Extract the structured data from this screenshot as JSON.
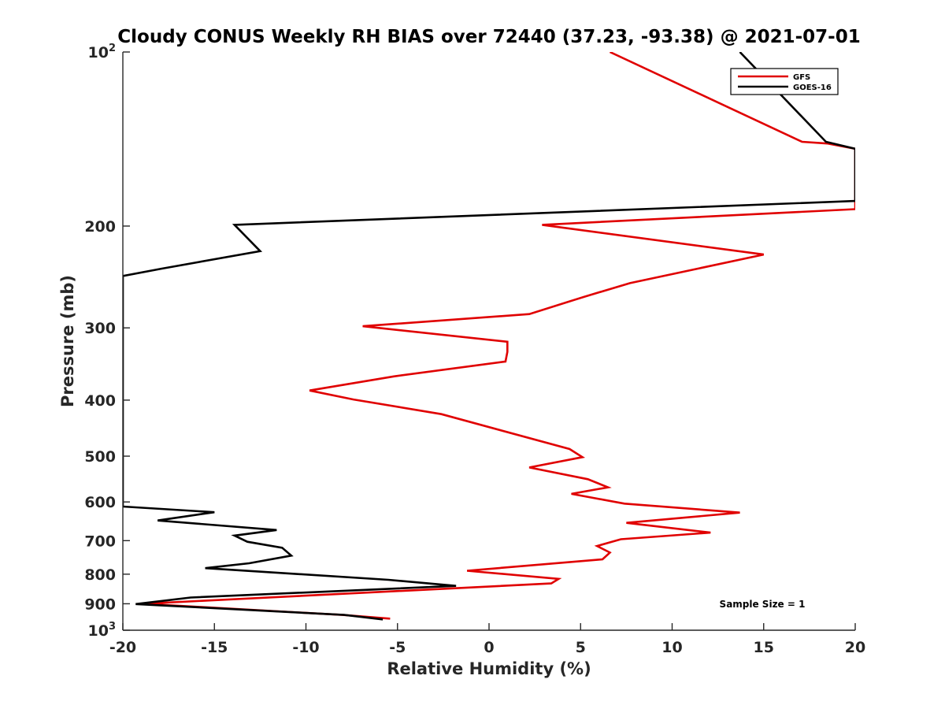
{
  "chart_data": {
    "type": "line",
    "title": "Cloudy CONUS Weekly RH BIAS over 72440 (37.23, -93.38) @ 2021-07-01",
    "xlabel": "Relative Humidity (%)",
    "ylabel": "Pressure (mb)",
    "xlim": [
      -20,
      20
    ],
    "ylim": [
      100,
      1000
    ],
    "yscale": "log",
    "y_reversed": true,
    "grid": false,
    "legend_position": "top-right",
    "x_ticks": [
      "-20",
      "-15",
      "-10",
      "-5",
      "0",
      "5",
      "10",
      "15",
      "20"
    ],
    "x_tick_values": [
      -20,
      -15,
      -10,
      -5,
      0,
      5,
      10,
      15,
      20
    ],
    "y_ticks": [
      {
        "value": 100,
        "base": "10",
        "exp": "2"
      },
      {
        "value": 200,
        "label": "200"
      },
      {
        "value": 300,
        "label": "300"
      },
      {
        "value": 400,
        "label": "400"
      },
      {
        "value": 500,
        "label": "500"
      },
      {
        "value": 600,
        "label": "600"
      },
      {
        "value": 700,
        "label": "700"
      },
      {
        "value": 800,
        "label": "800"
      },
      {
        "value": 900,
        "label": "900"
      },
      {
        "value": 1000,
        "base": "10",
        "exp": "3"
      }
    ],
    "annotation": "Sample Size = 1",
    "series": [
      {
        "name": "GFS",
        "color": "#e00000",
        "points": [
          [
            6.6,
            100
          ],
          [
            17.1,
            143
          ],
          [
            18.5,
            144
          ],
          [
            20,
            147
          ],
          [
            20,
            187
          ],
          [
            2.9,
            199
          ],
          [
            15.0,
            224
          ],
          [
            7.7,
            251
          ],
          [
            5.2,
            265
          ],
          [
            2.2,
            284
          ],
          [
            -6.9,
            298
          ],
          [
            1.0,
            317
          ],
          [
            1.0,
            330
          ],
          [
            0.9,
            343
          ],
          [
            -5.2,
            364
          ],
          [
            -9.8,
            385
          ],
          [
            -7.4,
            399
          ],
          [
            -2.6,
            423
          ],
          [
            4.4,
            486
          ],
          [
            5.1,
            502
          ],
          [
            2.2,
            523
          ],
          [
            5.4,
            548
          ],
          [
            6.5,
            566
          ],
          [
            4.5,
            581
          ],
          [
            7.4,
            604
          ],
          [
            13.7,
            626
          ],
          [
            7.5,
            652
          ],
          [
            12.1,
            678
          ],
          [
            7.2,
            696
          ],
          [
            5.9,
            715
          ],
          [
            6.6,
            734
          ],
          [
            6.2,
            754
          ],
          [
            -1.2,
            789
          ],
          [
            3.8,
            815
          ],
          [
            3.4,
            830
          ],
          [
            -18.9,
            900
          ],
          [
            -8.0,
            941
          ],
          [
            -5.4,
            955
          ]
        ]
      },
      {
        "name": "GOES-16",
        "color": "#000000",
        "points": [
          [
            13.7,
            100
          ],
          [
            18.4,
            143
          ],
          [
            20,
            147
          ],
          [
            20,
            181
          ],
          [
            -13.9,
            199
          ],
          [
            -12.5,
            221
          ],
          [
            -17.9,
            237
          ],
          [
            -20,
            244
          ],
          [
            -20,
            611
          ],
          [
            -15.0,
            625
          ],
          [
            -18.1,
            646
          ],
          [
            -11.6,
            671
          ],
          [
            -13.9,
            686
          ],
          [
            -13.2,
            703
          ],
          [
            -11.3,
            720
          ],
          [
            -10.8,
            743
          ],
          [
            -13.1,
            766
          ],
          [
            -15.5,
            781
          ],
          [
            -5.5,
            818
          ],
          [
            -1.8,
            838
          ],
          [
            -16.3,
            878
          ],
          [
            -19.3,
            901
          ],
          [
            -7.9,
            941
          ],
          [
            -5.8,
            958
          ]
        ]
      }
    ]
  }
}
